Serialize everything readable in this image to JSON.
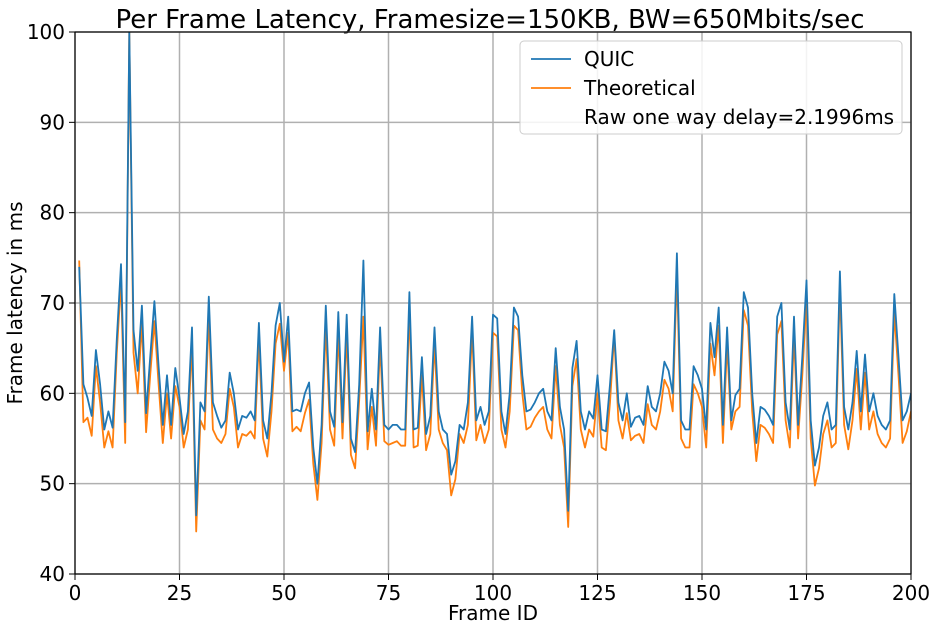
{
  "chart_data": {
    "type": "line",
    "title": "Per Frame Latency, Framesize=150KB, BW=650Mbits/sec",
    "xlabel": "Frame ID",
    "ylabel": "Frame latency in ms",
    "xlim": [
      0,
      200
    ],
    "ylim": [
      40,
      100
    ],
    "xticks": [
      0,
      25,
      50,
      75,
      100,
      125,
      150,
      175,
      200
    ],
    "yticks": [
      40,
      50,
      60,
      70,
      80,
      90,
      100
    ],
    "grid": true,
    "legend_position": "top-right",
    "legend_extra_text": "Raw one way delay=2.1996ms",
    "series": [
      {
        "name": "QUIC",
        "color": "#1f77b4",
        "x": [
          1,
          2,
          3,
          4,
          5,
          6,
          7,
          8,
          9,
          10,
          11,
          12,
          13,
          14,
          15,
          16,
          17,
          18,
          19,
          20,
          21,
          22,
          23,
          24,
          25,
          26,
          27,
          28,
          29,
          30,
          31,
          32,
          33,
          34,
          35,
          36,
          37,
          38,
          39,
          40,
          41,
          42,
          43,
          44,
          45,
          46,
          47,
          48,
          49,
          50,
          51,
          52,
          53,
          54,
          55,
          56,
          57,
          58,
          59,
          60,
          61,
          62,
          63,
          64,
          65,
          66,
          67,
          68,
          69,
          70,
          71,
          72,
          73,
          74,
          75,
          76,
          77,
          78,
          79,
          80,
          81,
          82,
          83,
          84,
          85,
          86,
          87,
          88,
          89,
          90,
          91,
          92,
          93,
          94,
          95,
          96,
          97,
          98,
          99,
          100,
          101,
          102,
          103,
          104,
          105,
          106,
          107,
          108,
          109,
          110,
          111,
          112,
          113,
          114,
          115,
          116,
          117,
          118,
          119,
          120,
          121,
          122,
          123,
          124,
          125,
          126,
          127,
          128,
          129,
          130,
          131,
          132,
          133,
          134,
          135,
          136,
          137,
          138,
          139,
          140,
          141,
          142,
          143,
          144,
          145,
          146,
          147,
          148,
          149,
          150,
          151,
          152,
          153,
          154,
          155,
          156,
          157,
          158,
          159,
          160,
          161,
          162,
          163,
          164,
          165,
          166,
          167,
          168,
          169,
          170,
          171,
          172,
          173,
          174,
          175,
          176,
          177,
          178,
          179,
          180,
          181,
          182,
          183,
          184,
          185,
          186,
          187,
          188,
          189,
          190,
          191,
          192,
          193,
          194,
          195,
          196,
          197,
          198,
          199,
          200
        ],
        "y": [
          74.0,
          61.0,
          59.5,
          57.5,
          64.8,
          61.0,
          56.0,
          58.0,
          56.2,
          66.0,
          74.3,
          56.8,
          100.0,
          67.0,
          62.5,
          69.7,
          57.8,
          64.0,
          70.2,
          63.0,
          56.5,
          62.0,
          56.5,
          62.8,
          59.5,
          55.5,
          58.0,
          67.3,
          46.5,
          59.0,
          58.0,
          70.7,
          59.0,
          57.5,
          56.2,
          57.0,
          62.3,
          60.0,
          56.0,
          57.5,
          57.3,
          58.0,
          57.0,
          67.8,
          57.0,
          55.0,
          60.0,
          67.5,
          70.0,
          63.5,
          68.5,
          58.0,
          58.2,
          58.0,
          60.0,
          61.2,
          54.0,
          50.0,
          56.5,
          69.7,
          58.0,
          56.3,
          69.0,
          56.8,
          68.7,
          55.0,
          53.5,
          61.0,
          74.7,
          55.8,
          60.5,
          56.0,
          67.3,
          56.5,
          56.0,
          56.5,
          56.5,
          56.0,
          56.0,
          71.2,
          56.0,
          56.2,
          64.0,
          55.5,
          57.5,
          67.3,
          58.0,
          56.0,
          55.5,
          51.0,
          52.5,
          56.5,
          56.0,
          59.0,
          68.5,
          57.0,
          58.5,
          56.5,
          58.0,
          68.7,
          68.3,
          58.0,
          55.5,
          60.0,
          69.5,
          68.5,
          62.0,
          58.0,
          58.2,
          59.0,
          60.0,
          60.5,
          58.0,
          57.0,
          65.0,
          58.5,
          56.0,
          47.0,
          62.8,
          65.8,
          58.0,
          56.0,
          58.0,
          57.2,
          62.0,
          56.0,
          55.8,
          61.0,
          67.0,
          59.0,
          57.0,
          60.0,
          56.3,
          57.3,
          57.5,
          56.5,
          60.8,
          58.5,
          58.0,
          60.0,
          63.5,
          62.5,
          60.0,
          75.5,
          57.0,
          56.0,
          56.0,
          63.0,
          62.0,
          60.5,
          56.0,
          67.8,
          64.0,
          69.5,
          56.5,
          67.3,
          57.0,
          59.8,
          60.5,
          71.2,
          69.5,
          60.0,
          54.5,
          58.5,
          58.2,
          57.5,
          56.5,
          68.5,
          70.0,
          59.0,
          56.0,
          68.5,
          56.5,
          64.0,
          72.5,
          57.0,
          52.0,
          54.0,
          57.5,
          59.0,
          56.0,
          56.5,
          73.5,
          58.5,
          56.0,
          59.0,
          64.7,
          58.0,
          64.3,
          58.0,
          60.0,
          57.5,
          56.5,
          56.0,
          57.0,
          71.0,
          64.0,
          57.0,
          58.0,
          60.0
        ]
      },
      {
        "name": "Theoretical",
        "color": "#ff7f0e",
        "x": [
          1,
          2,
          3,
          4,
          5,
          6,
          7,
          8,
          9,
          10,
          11,
          12,
          13,
          14,
          15,
          16,
          17,
          18,
          19,
          20,
          21,
          22,
          23,
          24,
          25,
          26,
          27,
          28,
          29,
          30,
          31,
          32,
          33,
          34,
          35,
          36,
          37,
          38,
          39,
          40,
          41,
          42,
          43,
          44,
          45,
          46,
          47,
          48,
          49,
          50,
          51,
          52,
          53,
          54,
          55,
          56,
          57,
          58,
          59,
          60,
          61,
          62,
          63,
          64,
          65,
          66,
          67,
          68,
          69,
          70,
          71,
          72,
          73,
          74,
          75,
          76,
          77,
          78,
          79,
          80,
          81,
          82,
          83,
          84,
          85,
          86,
          87,
          88,
          89,
          90,
          91,
          92,
          93,
          94,
          95,
          96,
          97,
          98,
          99,
          100,
          101,
          102,
          103,
          104,
          105,
          106,
          107,
          108,
          109,
          110,
          111,
          112,
          113,
          114,
          115,
          116,
          117,
          118,
          119,
          120,
          121,
          122,
          123,
          124,
          125,
          126,
          127,
          128,
          129,
          130,
          131,
          132,
          133,
          134,
          135,
          136,
          137,
          138,
          139,
          140,
          141,
          142,
          143,
          144,
          145,
          146,
          147,
          148,
          149,
          150,
          151,
          152,
          153,
          154,
          155,
          156,
          157,
          158,
          159,
          160,
          161,
          162,
          163,
          164,
          165,
          166,
          167,
          168,
          169,
          170,
          171,
          172,
          173,
          174,
          175,
          176,
          177,
          178,
          179,
          180,
          181,
          182,
          183,
          184,
          185,
          186,
          187,
          188,
          189,
          190,
          191,
          192,
          193,
          194,
          195,
          196,
          197,
          198,
          199,
          200
        ],
        "y": [
          74.7,
          56.8,
          57.3,
          55.3,
          63.0,
          59.0,
          54.0,
          55.8,
          54.0,
          64.5,
          72.5,
          54.5,
          100.0,
          64.5,
          60.0,
          67.8,
          55.7,
          62.0,
          68.0,
          61.0,
          54.5,
          60.0,
          55.0,
          60.8,
          58.5,
          54.0,
          56.0,
          65.5,
          44.7,
          57.0,
          56.0,
          68.7,
          56.0,
          55.0,
          54.5,
          55.5,
          60.5,
          58.5,
          54.0,
          55.5,
          55.3,
          55.8,
          55.0,
          66.0,
          55.0,
          53.0,
          58.0,
          65.5,
          67.7,
          62.5,
          66.7,
          55.8,
          56.3,
          55.8,
          57.8,
          59.3,
          52.2,
          48.2,
          54.5,
          67.5,
          56.0,
          54.2,
          66.8,
          55.0,
          66.7,
          53.2,
          51.7,
          59.3,
          68.5,
          53.8,
          58.5,
          54.2,
          65.5,
          54.7,
          54.3,
          54.5,
          54.7,
          54.2,
          54.2,
          69.3,
          54.0,
          54.2,
          62.0,
          53.7,
          55.5,
          65.5,
          56.0,
          54.5,
          53.7,
          48.7,
          50.5,
          55.5,
          54.5,
          56.5,
          67.0,
          54.8,
          56.5,
          54.5,
          56.0,
          66.7,
          66.3,
          56.0,
          54.0,
          58.0,
          67.5,
          67.0,
          60.0,
          56.0,
          56.3,
          57.3,
          58.0,
          58.5,
          56.0,
          55.0,
          63.0,
          56.5,
          54.0,
          45.2,
          60.8,
          63.8,
          56.0,
          54.0,
          56.0,
          55.2,
          60.0,
          54.0,
          53.7,
          59.0,
          66.5,
          57.0,
          55.0,
          57.8,
          54.8,
          55.3,
          55.5,
          54.5,
          58.8,
          56.5,
          56.0,
          58.0,
          61.5,
          60.5,
          58.0,
          73.5,
          55.0,
          54.0,
          54.0,
          61.0,
          60.0,
          58.5,
          54.0,
          65.5,
          62.0,
          67.5,
          54.5,
          65.5,
          56.0,
          58.0,
          58.5,
          69.2,
          67.5,
          58.0,
          52.5,
          56.5,
          56.2,
          55.5,
          54.5,
          66.5,
          68.0,
          57.0,
          54.0,
          66.5,
          55.0,
          62.0,
          70.5,
          55.0,
          49.8,
          51.7,
          55.5,
          57.0,
          54.0,
          54.5,
          71.7,
          56.5,
          53.8,
          57.0,
          62.7,
          56.0,
          62.3,
          56.0,
          58.0,
          55.5,
          54.5,
          54.0,
          55.0,
          69.0,
          62.0,
          54.5,
          55.8,
          58.0
        ]
      }
    ]
  }
}
